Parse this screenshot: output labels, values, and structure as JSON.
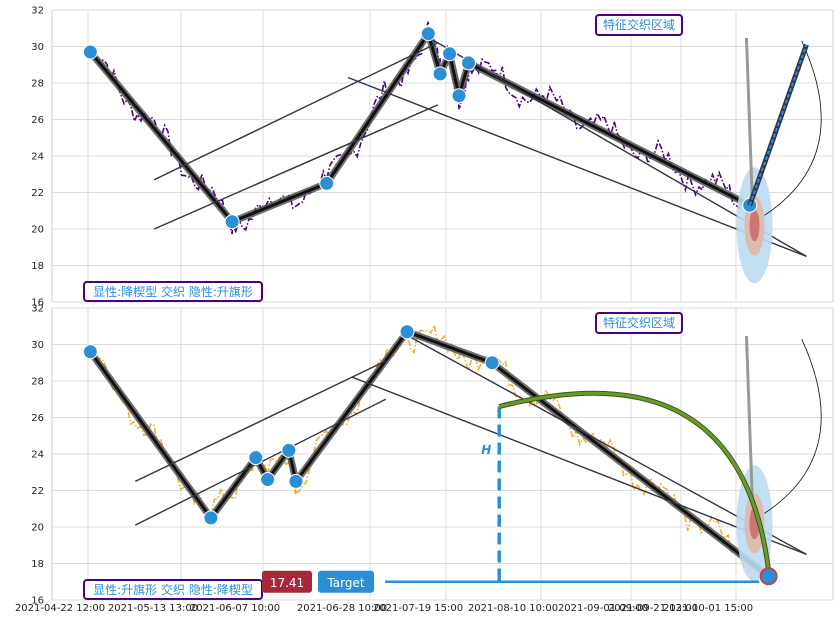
{
  "chart_data": [
    {
      "type": "line",
      "panel": "top",
      "ylim": [
        16,
        32
      ],
      "yticks": [
        "16",
        "18",
        "20",
        "22",
        "24",
        "26",
        "28",
        "30",
        "32"
      ],
      "grid": true,
      "line_color": "#4b0082",
      "line_style": "dash-dot",
      "pattern_points": [
        {
          "x": 0.05,
          "y": 29.7
        },
        {
          "x": 3.05,
          "y": 20.4
        },
        {
          "x": 5.05,
          "y": 22.5
        },
        {
          "x": 7.2,
          "y": 30.7
        },
        {
          "x": 7.45,
          "y": 28.5
        },
        {
          "x": 7.65,
          "y": 29.6
        },
        {
          "x": 7.85,
          "y": 27.3
        },
        {
          "x": 8.05,
          "y": 29.1
        },
        {
          "x": 14.0,
          "y": 21.3
        }
      ],
      "target_arrow": {
        "x_start": 14.0,
        "y_start": 21.3,
        "x_end": 15.2,
        "y_end": 30.1
      },
      "zone_label": "特征交织区域",
      "bottom_label": "显性:降楔型 交织 隐性:升旗形"
    },
    {
      "type": "line",
      "panel": "bottom",
      "ylim": [
        16,
        32
      ],
      "yticks": [
        "16",
        "18",
        "20",
        "22",
        "24",
        "26",
        "28",
        "30",
        "32"
      ],
      "xticks": [
        "2021-04-22 12:00",
        "2021-05-13 13:00",
        "2021-06-07 10:00",
        "2021-06-28 10:00",
        "2021-07-19 15:00",
        "2021-08-10 10:00",
        "2021-09-01 09:00",
        "2021-09-21 13:00",
        "2021-10-01 15:00"
      ],
      "grid": true,
      "line_color": "#f0b030",
      "line_style": "dash-dot",
      "pattern_points": [
        {
          "x": 0.05,
          "y": 29.6
        },
        {
          "x": 2.6,
          "y": 20.5
        },
        {
          "x": 3.55,
          "y": 23.8
        },
        {
          "x": 3.8,
          "y": 22.6
        },
        {
          "x": 4.25,
          "y": 24.2
        },
        {
          "x": 4.4,
          "y": 22.5
        },
        {
          "x": 6.75,
          "y": 30.7
        },
        {
          "x": 8.55,
          "y": 29.0
        },
        {
          "x": 14.4,
          "y": 17.3
        }
      ],
      "height_marker": "H",
      "price_label": "17.41",
      "target_label": "Target",
      "zone_label": "特征交织区域",
      "bottom_label": "显性:升旗形 交织 隐性:降楔型"
    }
  ]
}
